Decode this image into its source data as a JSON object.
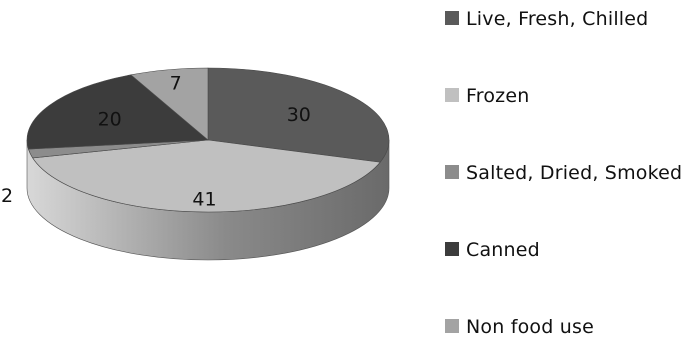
{
  "chart_data": {
    "type": "pie",
    "style": "3d",
    "title": "",
    "legend_position": "right",
    "slices": [
      {
        "label": "Live, Fresh, Chilled",
        "value": 30,
        "color": "#5a5a5a"
      },
      {
        "label": "Frozen",
        "value": 41,
        "color": "#c0c0c0"
      },
      {
        "label": "Salted, Dried, Smoked",
        "value": 2,
        "color": "#8c8c8c"
      },
      {
        "label": "Canned",
        "value": 20,
        "color": "#3c3c3c"
      },
      {
        "label": "Non food use",
        "value": 7,
        "color": "#a3a3a3"
      }
    ],
    "legend": [
      "Live, Fresh, Chilled",
      "Frozen",
      "Salted, Dried, Smoked",
      "Canned",
      "Non food use"
    ]
  }
}
